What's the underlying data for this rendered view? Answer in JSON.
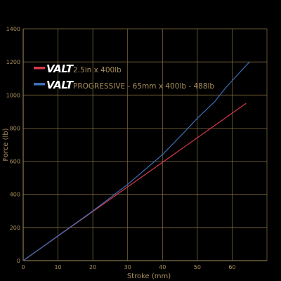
{
  "chart_data": {
    "type": "line",
    "title": "",
    "xlabel": "Stroke (mm)",
    "ylabel": "Force (lb)",
    "xlim": [
      0,
      70
    ],
    "ylim": [
      0,
      1400
    ],
    "x_ticks": [
      "0",
      "10",
      "20",
      "30",
      "40",
      "50",
      "60"
    ],
    "y_ticks": [
      "0",
      "200",
      "400",
      "600",
      "800",
      "1000",
      "1200",
      "1400"
    ],
    "grid": true,
    "legend_position": "upper-left",
    "background_color": "#000000",
    "axis_color": "#a98f5c",
    "grid_color": "#8a7444",
    "series": [
      {
        "brand": "VALT",
        "name": "2.5in x 400lb",
        "color": "#d8394b",
        "x": [
          0,
          64
        ],
        "y": [
          0,
          950
        ]
      },
      {
        "brand": "VALT",
        "name": "PROGRESSIVE - 65mm x 400lb - 488lb",
        "color": "#3d6fb8",
        "x": [
          0,
          10,
          20,
          30,
          40,
          46,
          50,
          55,
          58,
          61,
          65
        ],
        "y": [
          0,
          150,
          300,
          460,
          640,
          770,
          860,
          960,
          1040,
          1110,
          1200
        ]
      }
    ]
  }
}
